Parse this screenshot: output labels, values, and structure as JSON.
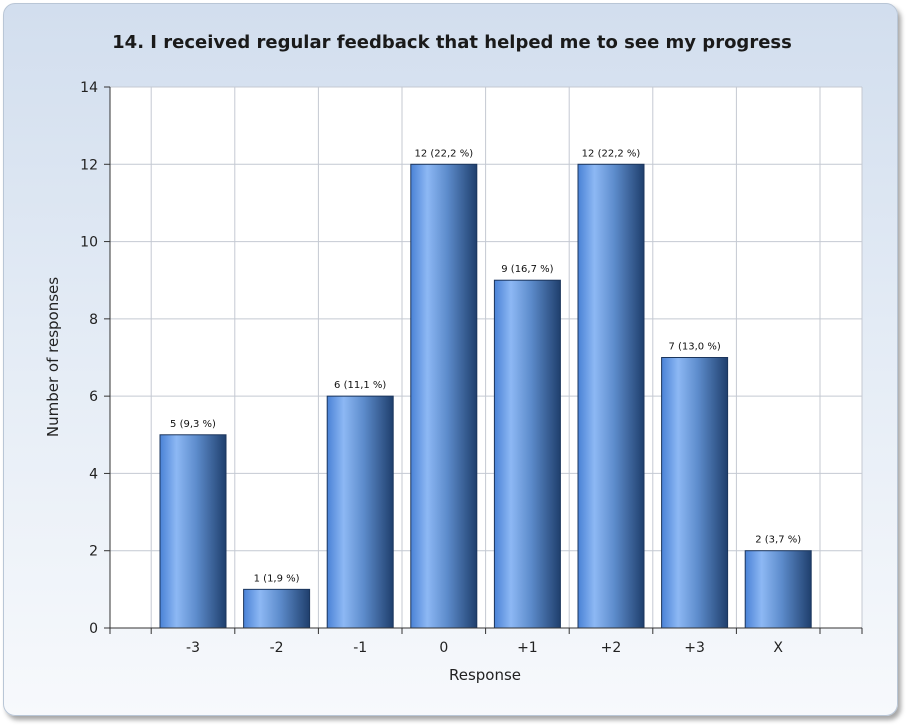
{
  "chart_data": {
    "type": "bar",
    "title": "14. I received regular feedback that helped me to see my progress",
    "xlabel": "Response",
    "ylabel": "Number of responses",
    "categories": [
      "-3",
      "-2",
      "-1",
      "0",
      "+1",
      "+2",
      "+3",
      "X"
    ],
    "values": [
      5,
      1,
      6,
      12,
      9,
      12,
      7,
      2
    ],
    "data_labels": [
      "5 (9,3 %)",
      "1 (1,9 %)",
      "6 (11,1 %)",
      "12 (22,2 %)",
      "9 (16,7 %)",
      "12 (22,2 %)",
      "7 (13,0 %)",
      "2 (3,7 %)"
    ],
    "ylim": [
      0,
      14
    ],
    "yticks": [
      0,
      2,
      4,
      6,
      8,
      10,
      12,
      14
    ],
    "grid": true,
    "bar_color": "#5b8fd8"
  }
}
